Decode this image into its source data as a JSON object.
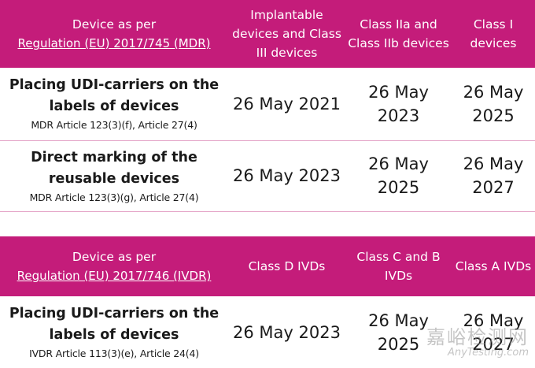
{
  "mdr": {
    "header": {
      "device_line1": "Device as per",
      "device_link": "Regulation (EU) 2017/745 (MDR)",
      "col1": "Implantable devices and Class III devices",
      "col2": "Class IIa and Class IIb devices",
      "col3": "Class I devices"
    },
    "rows": [
      {
        "label": "Placing UDI-carriers on the labels of devices",
        "ref": "MDR Article 123(3)(f), Article 27(4)",
        "dates": [
          "26 May 2021",
          "26 May 2023",
          "26 May 2025"
        ]
      },
      {
        "label": "Direct marking of the reusable devices",
        "ref": "MDR Article 123(3)(g), Article 27(4)",
        "dates": [
          "26 May 2023",
          "26 May 2025",
          "26 May 2027"
        ]
      }
    ]
  },
  "ivdr": {
    "header": {
      "device_line1": "Device as per",
      "device_link": "Regulation (EU) 2017/746 (IVDR)",
      "col1": "Class D IVDs",
      "col2": "Class C and B IVDs",
      "col3": "Class A IVDs"
    },
    "rows": [
      {
        "label": "Placing UDI-carriers on the labels of devices",
        "ref": "IVDR Article 113(3)(e), Article 24(4)",
        "dates": [
          "26 May 2023",
          "26 May 2025",
          "26 May 2027"
        ]
      }
    ]
  },
  "watermark": {
    "cn": "嘉峪检测网",
    "en": "AnyTesting.com"
  },
  "colors": {
    "header_bg": "#c41c7a",
    "row_border": "#e5a7c9"
  }
}
